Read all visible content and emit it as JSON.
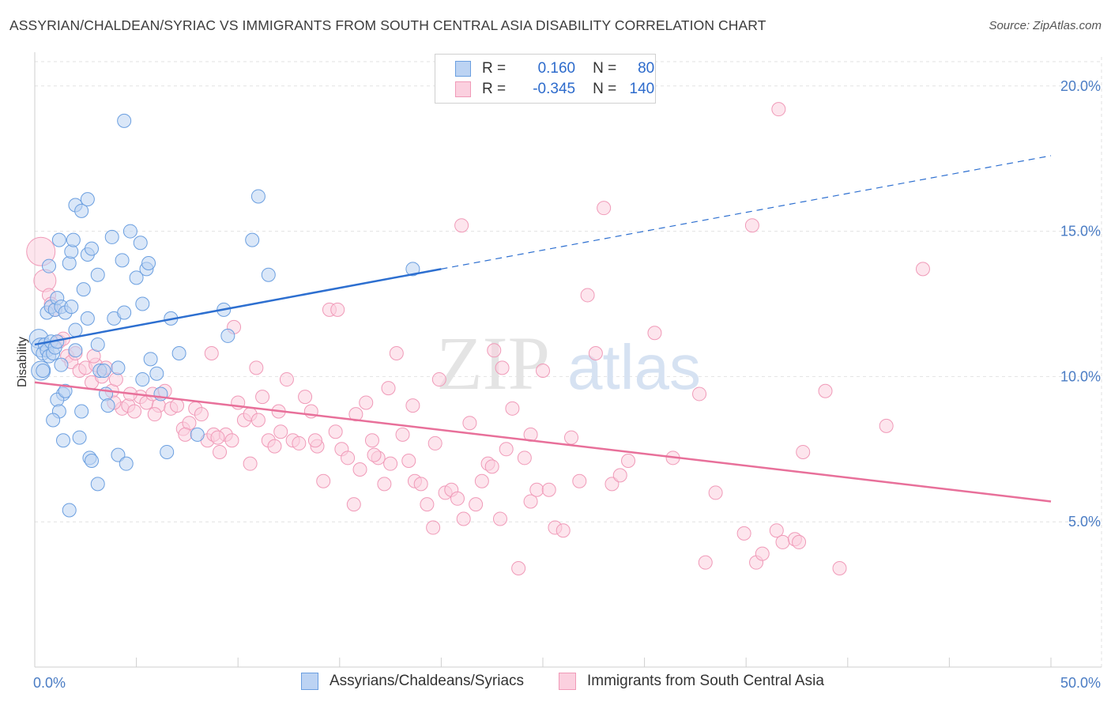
{
  "title": "ASSYRIAN/CHALDEAN/SYRIAC VS IMMIGRANTS FROM SOUTH CENTRAL ASIA DISABILITY CORRELATION CHART",
  "source": "Source: ZipAtlas.com",
  "watermark": {
    "zip": "ZIP",
    "atlas": "atlas"
  },
  "legend": {
    "rows": [
      {
        "r_label": "R =",
        "r_value": "0.160",
        "n_label": "N =",
        "n_value": "80",
        "color": "#6b9fe0",
        "fill": "#bcd3f3"
      },
      {
        "r_label": "R =",
        "r_value": "-0.345",
        "n_label": "N =",
        "n_value": "140",
        "color": "#f09ab8",
        "fill": "#fbd0df"
      }
    ]
  },
  "chart_data": {
    "type": "scatter",
    "title": "ASSYRIAN/CHALDEAN/SYRIAC VS IMMIGRANTS FROM SOUTH CENTRAL ASIA DISABILITY CORRELATION CHART",
    "xlabel": "",
    "ylabel": "Disability",
    "xlim": [
      0,
      50
    ],
    "ylim": [
      0,
      21
    ],
    "x_ticks": [
      "0.0%",
      "50.0%"
    ],
    "y_ticks": [
      {
        "value": 5,
        "label": "5.0%"
      },
      {
        "value": 10,
        "label": "10.0%"
      },
      {
        "value": 15,
        "label": "15.0%"
      },
      {
        "value": 20,
        "label": "20.0%"
      }
    ],
    "grid": true,
    "series": [
      {
        "name": "Assyrians/Chaldeans/Syriacs",
        "color": "#6b9fe0",
        "fill": "#bcd3f3",
        "trend": {
          "x0": 0,
          "y0": 11.1,
          "x1": 20,
          "y1": 13.7,
          "x_ext": 50,
          "y_ext": 17.6
        },
        "points": [
          [
            0.2,
            11.3
          ],
          [
            0.3,
            11.0
          ],
          [
            0.4,
            10.8
          ],
          [
            0.5,
            11.1
          ],
          [
            0.6,
            10.9
          ],
          [
            0.7,
            10.7
          ],
          [
            0.8,
            11.2
          ],
          [
            0.9,
            10.8
          ],
          [
            1.0,
            11.0
          ],
          [
            1.1,
            11.2
          ],
          [
            0.3,
            10.2
          ],
          [
            0.4,
            10.2
          ],
          [
            0.6,
            12.2
          ],
          [
            0.7,
            13.8
          ],
          [
            0.8,
            12.4
          ],
          [
            1.0,
            12.3
          ],
          [
            1.1,
            12.7
          ],
          [
            1.2,
            14.7
          ],
          [
            1.3,
            12.4
          ],
          [
            1.5,
            12.2
          ],
          [
            1.7,
            13.9
          ],
          [
            1.8,
            14.3
          ],
          [
            1.9,
            14.7
          ],
          [
            1.8,
            12.4
          ],
          [
            2.0,
            15.9
          ],
          [
            2.3,
            15.7
          ],
          [
            2.6,
            16.1
          ],
          [
            2.4,
            13.0
          ],
          [
            2.6,
            12.0
          ],
          [
            2.6,
            14.2
          ],
          [
            2.8,
            14.4
          ],
          [
            3.1,
            13.5
          ],
          [
            3.1,
            11.1
          ],
          [
            3.2,
            10.2
          ],
          [
            3.4,
            10.2
          ],
          [
            3.5,
            9.4
          ],
          [
            3.6,
            9.0
          ],
          [
            3.8,
            14.8
          ],
          [
            3.9,
            12.0
          ],
          [
            4.1,
            10.3
          ],
          [
            4.3,
            14.0
          ],
          [
            4.4,
            12.2
          ],
          [
            4.7,
            15.0
          ],
          [
            5.0,
            13.4
          ],
          [
            5.2,
            14.6
          ],
          [
            5.3,
            12.5
          ],
          [
            5.5,
            13.7
          ],
          [
            5.6,
            13.9
          ],
          [
            5.3,
            9.9
          ],
          [
            5.7,
            10.6
          ],
          [
            6.0,
            10.1
          ],
          [
            6.2,
            9.4
          ],
          [
            6.5,
            7.4
          ],
          [
            6.7,
            12.0
          ],
          [
            7.1,
            10.8
          ],
          [
            8.0,
            8.0
          ],
          [
            9.3,
            12.3
          ],
          [
            9.5,
            11.4
          ],
          [
            10.7,
            14.7
          ],
          [
            11.0,
            16.2
          ],
          [
            11.5,
            13.5
          ],
          [
            18.6,
            13.7
          ],
          [
            4.4,
            18.8
          ],
          [
            2.0,
            10.9
          ],
          [
            1.3,
            10.4
          ],
          [
            1.4,
            9.4
          ],
          [
            1.1,
            9.2
          ],
          [
            1.2,
            8.8
          ],
          [
            1.4,
            7.8
          ],
          [
            2.2,
            7.9
          ],
          [
            2.7,
            7.2
          ],
          [
            2.8,
            7.1
          ],
          [
            3.1,
            6.3
          ],
          [
            4.1,
            7.3
          ],
          [
            4.5,
            7.0
          ],
          [
            1.7,
            5.4
          ],
          [
            2.3,
            8.8
          ],
          [
            1.5,
            9.5
          ],
          [
            0.9,
            8.5
          ],
          [
            2.0,
            11.6
          ]
        ]
      },
      {
        "name": "Immigrants from South Central Asia",
        "color": "#f09ab8",
        "fill": "#fbd0df",
        "trend": {
          "x0": 0,
          "y0": 9.8,
          "x1": 50,
          "y1": 5.7
        },
        "points": [
          [
            0.3,
            14.3
          ],
          [
            0.5,
            13.3
          ],
          [
            0.7,
            12.8
          ],
          [
            0.8,
            12.5
          ],
          [
            1.0,
            12.3
          ],
          [
            1.2,
            11.2
          ],
          [
            1.4,
            11.3
          ],
          [
            1.6,
            10.7
          ],
          [
            1.8,
            10.5
          ],
          [
            2.0,
            10.8
          ],
          [
            2.2,
            10.2
          ],
          [
            2.5,
            10.3
          ],
          [
            2.8,
            9.8
          ],
          [
            3.0,
            10.4
          ],
          [
            3.3,
            10.0
          ],
          [
            3.5,
            10.3
          ],
          [
            3.8,
            9.5
          ],
          [
            4.0,
            9.9
          ],
          [
            4.3,
            8.9
          ],
          [
            4.6,
            9.0
          ],
          [
            4.9,
            8.8
          ],
          [
            5.2,
            9.3
          ],
          [
            5.5,
            9.1
          ],
          [
            5.8,
            9.4
          ],
          [
            6.1,
            9.0
          ],
          [
            6.4,
            9.5
          ],
          [
            6.7,
            8.9
          ],
          [
            7.0,
            9.0
          ],
          [
            7.3,
            8.2
          ],
          [
            7.6,
            8.4
          ],
          [
            7.9,
            8.9
          ],
          [
            8.2,
            8.7
          ],
          [
            8.5,
            7.8
          ],
          [
            8.8,
            8.0
          ],
          [
            9.1,
            7.4
          ],
          [
            9.4,
            8.0
          ],
          [
            9.7,
            7.8
          ],
          [
            10.0,
            9.1
          ],
          [
            10.3,
            8.5
          ],
          [
            10.6,
            8.7
          ],
          [
            10.9,
            10.3
          ],
          [
            11.2,
            9.3
          ],
          [
            11.5,
            7.8
          ],
          [
            11.8,
            7.6
          ],
          [
            12.1,
            8.1
          ],
          [
            12.4,
            9.9
          ],
          [
            12.7,
            7.8
          ],
          [
            13.0,
            7.7
          ],
          [
            13.3,
            9.3
          ],
          [
            13.6,
            8.8
          ],
          [
            13.9,
            7.6
          ],
          [
            14.2,
            6.4
          ],
          [
            14.5,
            12.3
          ],
          [
            14.8,
            8.1
          ],
          [
            15.1,
            7.5
          ],
          [
            15.4,
            7.2
          ],
          [
            15.7,
            5.6
          ],
          [
            16.0,
            6.8
          ],
          [
            16.3,
            9.1
          ],
          [
            16.6,
            7.8
          ],
          [
            16.9,
            7.2
          ],
          [
            17.2,
            6.3
          ],
          [
            17.5,
            7.0
          ],
          [
            17.8,
            10.8
          ],
          [
            18.1,
            8.0
          ],
          [
            18.4,
            7.1
          ],
          [
            18.7,
            6.4
          ],
          [
            19.0,
            6.3
          ],
          [
            19.3,
            5.6
          ],
          [
            19.6,
            4.8
          ],
          [
            19.9,
            9.9
          ],
          [
            20.2,
            6.0
          ],
          [
            20.5,
            6.1
          ],
          [
            20.8,
            5.8
          ],
          [
            21.1,
            5.1
          ],
          [
            21.4,
            8.4
          ],
          [
            21.7,
            5.6
          ],
          [
            22.0,
            6.4
          ],
          [
            22.3,
            7.0
          ],
          [
            22.6,
            10.9
          ],
          [
            22.9,
            5.1
          ],
          [
            23.2,
            7.5
          ],
          [
            23.5,
            8.9
          ],
          [
            23.8,
            3.4
          ],
          [
            24.1,
            7.2
          ],
          [
            24.4,
            5.7
          ],
          [
            24.7,
            6.1
          ],
          [
            25.0,
            10.2
          ],
          [
            25.3,
            6.1
          ],
          [
            25.6,
            4.8
          ],
          [
            26.0,
            4.7
          ],
          [
            26.4,
            7.9
          ],
          [
            26.8,
            6.4
          ],
          [
            27.2,
            12.8
          ],
          [
            27.6,
            10.8
          ],
          [
            28.0,
            15.8
          ],
          [
            28.4,
            6.3
          ],
          [
            28.8,
            6.6
          ],
          [
            29.2,
            7.1
          ],
          [
            30.5,
            11.5
          ],
          [
            31.4,
            7.2
          ],
          [
            32.7,
            9.4
          ],
          [
            33.0,
            3.6
          ],
          [
            33.5,
            6.0
          ],
          [
            34.9,
            4.6
          ],
          [
            35.3,
            15.2
          ],
          [
            35.5,
            3.6
          ],
          [
            35.8,
            3.9
          ],
          [
            36.5,
            4.7
          ],
          [
            36.8,
            4.3
          ],
          [
            37.4,
            4.4
          ],
          [
            37.6,
            4.3
          ],
          [
            37.8,
            7.4
          ],
          [
            38.9,
            9.5
          ],
          [
            39.6,
            3.4
          ],
          [
            41.9,
            8.3
          ],
          [
            43.7,
            13.7
          ],
          [
            36.6,
            19.2
          ],
          [
            21.0,
            15.2
          ],
          [
            9.8,
            11.7
          ],
          [
            8.7,
            10.8
          ],
          [
            14.9,
            12.3
          ],
          [
            24.4,
            8.0
          ],
          [
            15.8,
            8.7
          ],
          [
            17.4,
            9.6
          ],
          [
            19.7,
            7.7
          ],
          [
            11.0,
            8.5
          ],
          [
            12.0,
            8.8
          ],
          [
            22.5,
            6.9
          ],
          [
            13.8,
            7.8
          ],
          [
            16.7,
            7.3
          ],
          [
            18.6,
            9.0
          ],
          [
            23.0,
            10.3
          ],
          [
            9.0,
            7.9
          ],
          [
            10.6,
            7.0
          ],
          [
            7.4,
            8.0
          ],
          [
            5.9,
            8.7
          ],
          [
            4.7,
            9.4
          ],
          [
            3.9,
            9.1
          ],
          [
            2.9,
            10.7
          ]
        ]
      }
    ]
  }
}
